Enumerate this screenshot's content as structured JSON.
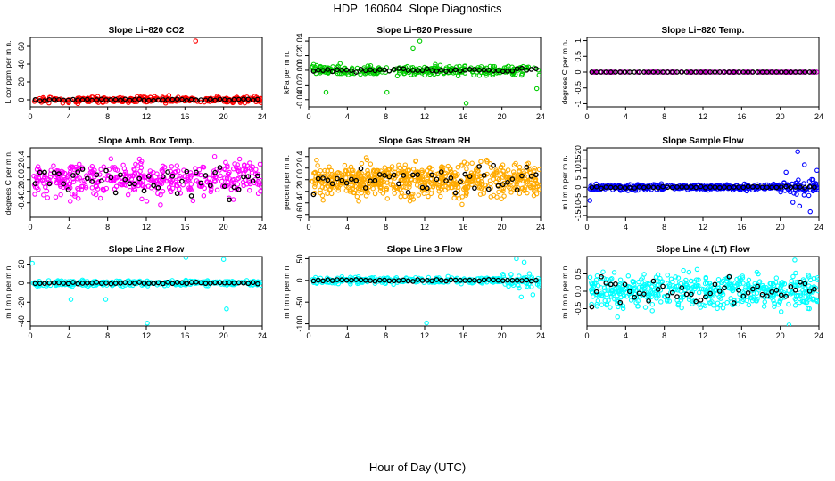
{
  "title": "HDP  160604  Slope Diagnostics",
  "xlabel": "Hour of Day (UTC)",
  "chart_data": [
    {
      "type": "scatter",
      "title": "Slope Li−820 CO2",
      "ylabel": "L cor ppm per m n.",
      "xlim": [
        0,
        24
      ],
      "ylim": [
        -8,
        70
      ],
      "yticks": [
        0,
        20,
        40,
        60
      ],
      "xticks": [
        0,
        4,
        8,
        12,
        16,
        20,
        24
      ],
      "color": "#ff0000",
      "spread": 3,
      "outliers": [
        {
          "x": 17.1,
          "y": 66
        }
      ],
      "n": 350,
      "seed": 11
    },
    {
      "type": "scatter",
      "title": "Slope Li−820 Pressure",
      "ylabel": "kPa per m n.",
      "xlim": [
        0,
        24
      ],
      "ylim": [
        -0.05,
        0.045
      ],
      "yticks": [
        -0.04,
        -0.02,
        0.0,
        0.02,
        0.04
      ],
      "xticks": [
        0,
        4,
        8,
        12,
        16,
        20,
        24
      ],
      "color": "#00cc00",
      "spread": 0.006,
      "outliers": [
        {
          "x": 11.5,
          "y": 0.04
        },
        {
          "x": 1.8,
          "y": -0.03
        },
        {
          "x": 16.3,
          "y": -0.045
        },
        {
          "x": 8.1,
          "y": -0.03
        },
        {
          "x": 10.8,
          "y": 0.03
        },
        {
          "x": 23.6,
          "y": -0.025
        }
      ],
      "n": 300,
      "seed": 23
    },
    {
      "type": "scatter",
      "title": "Slope Li−820 Temp.",
      "ylabel": "degrees C per m n.",
      "xlim": [
        0,
        24
      ],
      "ylim": [
        -1.1,
        1.1
      ],
      "yticks": [
        -1.0,
        -0.5,
        0.0,
        0.5,
        1.0
      ],
      "xticks": [
        0,
        4,
        8,
        12,
        16,
        20,
        24
      ],
      "color": "#cc00cc",
      "spread": 0.003,
      "outliers": [],
      "n": 140,
      "seed": 37
    },
    {
      "type": "scatter",
      "title": "Slope Amb. Box Temp.",
      "ylabel": "degrees C per m n.",
      "xlim": [
        0,
        24
      ],
      "ylim": [
        -0.65,
        0.55
      ],
      "yticks": [
        -0.4,
        -0.2,
        0.0,
        0.2,
        0.4
      ],
      "xticks": [
        0,
        4,
        8,
        12,
        16,
        20,
        24
      ],
      "color": "#ff00ff",
      "spread": 0.26,
      "outliers": [],
      "n": 420,
      "seed": 41
    },
    {
      "type": "scatter",
      "title": "Slope Gas Stream RH",
      "ylabel": "percent per m n.",
      "xlim": [
        0,
        24
      ],
      "ylim": [
        -0.65,
        0.55
      ],
      "yticks": [
        -0.6,
        -0.4,
        -0.2,
        0.0,
        0.2,
        0.4
      ],
      "xticks": [
        0,
        4,
        8,
        12,
        16,
        20,
        24
      ],
      "color": "#ffaa00",
      "spread": 0.26,
      "outliers": [],
      "n": 650,
      "seed": 53
    },
    {
      "type": "scatter",
      "title": "Slope Sample Flow",
      "ylabel": "m l m n per m n.",
      "xlim": [
        0,
        24
      ],
      "ylim": [
        -16,
        21
      ],
      "yticks": [
        -15,
        -10,
        -5,
        0,
        5,
        10,
        15,
        20
      ],
      "xticks": [
        0,
        4,
        8,
        12,
        16,
        20,
        24
      ],
      "color": "#0000ff",
      "spread": 1.3,
      "outliers": [
        {
          "x": 21.8,
          "y": 19
        },
        {
          "x": 22.5,
          "y": 12
        },
        {
          "x": 21.3,
          "y": -8
        },
        {
          "x": 23.1,
          "y": -13
        },
        {
          "x": 22.0,
          "y": -10
        },
        {
          "x": 0.3,
          "y": -7
        },
        {
          "x": 20.6,
          "y": 8
        },
        {
          "x": 23.8,
          "y": 9
        }
      ],
      "n": 400,
      "seed": 61
    },
    {
      "type": "scatter",
      "title": "Slope Line 2 Flow",
      "ylabel": "m l m n per m n.",
      "xlim": [
        0,
        24
      ],
      "ylim": [
        -45,
        28
      ],
      "yticks": [
        -40,
        -20,
        0,
        20
      ],
      "xticks": [
        0,
        4,
        8,
        12,
        16,
        20,
        24
      ],
      "color": "#00ffff",
      "spread": 2.5,
      "outliers": [
        {
          "x": 0.2,
          "y": 21
        },
        {
          "x": 16.1,
          "y": 27
        },
        {
          "x": 20.0,
          "y": 25
        },
        {
          "x": 12.1,
          "y": -42
        },
        {
          "x": 4.2,
          "y": -17
        },
        {
          "x": 20.3,
          "y": -27
        },
        {
          "x": 7.8,
          "y": -17
        }
      ],
      "n": 300,
      "seed": 71
    },
    {
      "type": "scatter",
      "title": "Slope Line 3 Flow",
      "ylabel": "m l m n per m n.",
      "xlim": [
        0,
        24
      ],
      "ylim": [
        -105,
        55
      ],
      "yticks": [
        -100,
        -50,
        0,
        50
      ],
      "xticks": [
        0,
        4,
        8,
        12,
        16,
        20,
        24
      ],
      "color": "#00ffff",
      "spread": 6,
      "outliers": [
        {
          "x": 12.2,
          "y": -98
        },
        {
          "x": 21.5,
          "y": 50
        },
        {
          "x": 22.3,
          "y": 42
        },
        {
          "x": 22.0,
          "y": -38
        },
        {
          "x": 23.2,
          "y": -33
        }
      ],
      "n": 330,
      "seed": 83
    },
    {
      "type": "scatter",
      "title": "Slope Line 4 (LT) Flow",
      "ylabel": "m l m n per m n.",
      "xlim": [
        0,
        24
      ],
      "ylim": [
        -1.0,
        1.0
      ],
      "yticks": [
        -0.5,
        0.0,
        0.5
      ],
      "xticks": [
        0,
        4,
        8,
        12,
        16,
        20,
        24
      ],
      "color": "#00ffff",
      "spread": 0.42,
      "outliers": [
        {
          "x": 20.9,
          "y": -0.97
        },
        {
          "x": 21.5,
          "y": 0.9
        }
      ],
      "n": 520,
      "seed": 97
    }
  ]
}
